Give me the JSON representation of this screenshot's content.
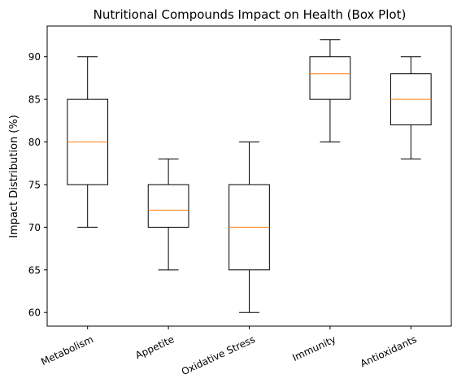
{
  "chart_data": {
    "type": "box",
    "title": "Nutritional Compounds Impact on Health (Box Plot)",
    "xlabel": "",
    "ylabel": "Impact Distribution (%)",
    "ylim": [
      58.4,
      93.6
    ],
    "yticks": [
      60,
      65,
      70,
      75,
      80,
      85,
      90
    ],
    "grid": false,
    "colors": {
      "box": "#000000",
      "median": "#ff7f0e",
      "background": "#ffffff"
    },
    "categories": [
      "Metabolism",
      "Appetite",
      "Oxidative Stress",
      "Immunity",
      "Antioxidants"
    ],
    "boxes": [
      {
        "category": "Metabolism",
        "whislo": 70,
        "q1": 75,
        "med": 80,
        "q3": 85,
        "whishi": 90
      },
      {
        "category": "Appetite",
        "whislo": 65,
        "q1": 70,
        "med": 72,
        "q3": 75,
        "whishi": 78
      },
      {
        "category": "Oxidative Stress",
        "whislo": 60,
        "q1": 65,
        "med": 70,
        "q3": 75,
        "whishi": 80
      },
      {
        "category": "Immunity",
        "whislo": 80,
        "q1": 85,
        "med": 88,
        "q3": 90,
        "whishi": 92
      },
      {
        "category": "Antioxidants",
        "whislo": 78,
        "q1": 82,
        "med": 85,
        "q3": 88,
        "whishi": 90
      }
    ]
  }
}
